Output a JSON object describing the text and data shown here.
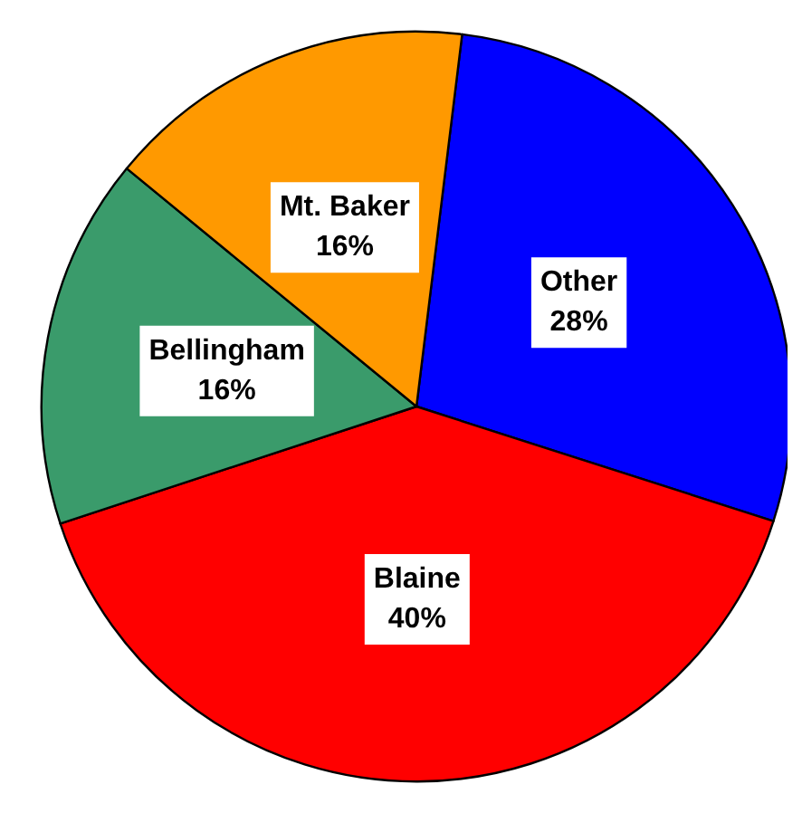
{
  "chart_data": {
    "type": "pie",
    "categories": [
      "Other",
      "Blaine",
      "Bellingham",
      "Mt. Baker"
    ],
    "values": [
      28,
      40,
      16,
      16
    ],
    "colors": [
      "#0000ff",
      "#ff0000",
      "#3a9b6b",
      "#ff9900"
    ],
    "value_labels": [
      "28%",
      "40%",
      "16%",
      "16%"
    ]
  }
}
